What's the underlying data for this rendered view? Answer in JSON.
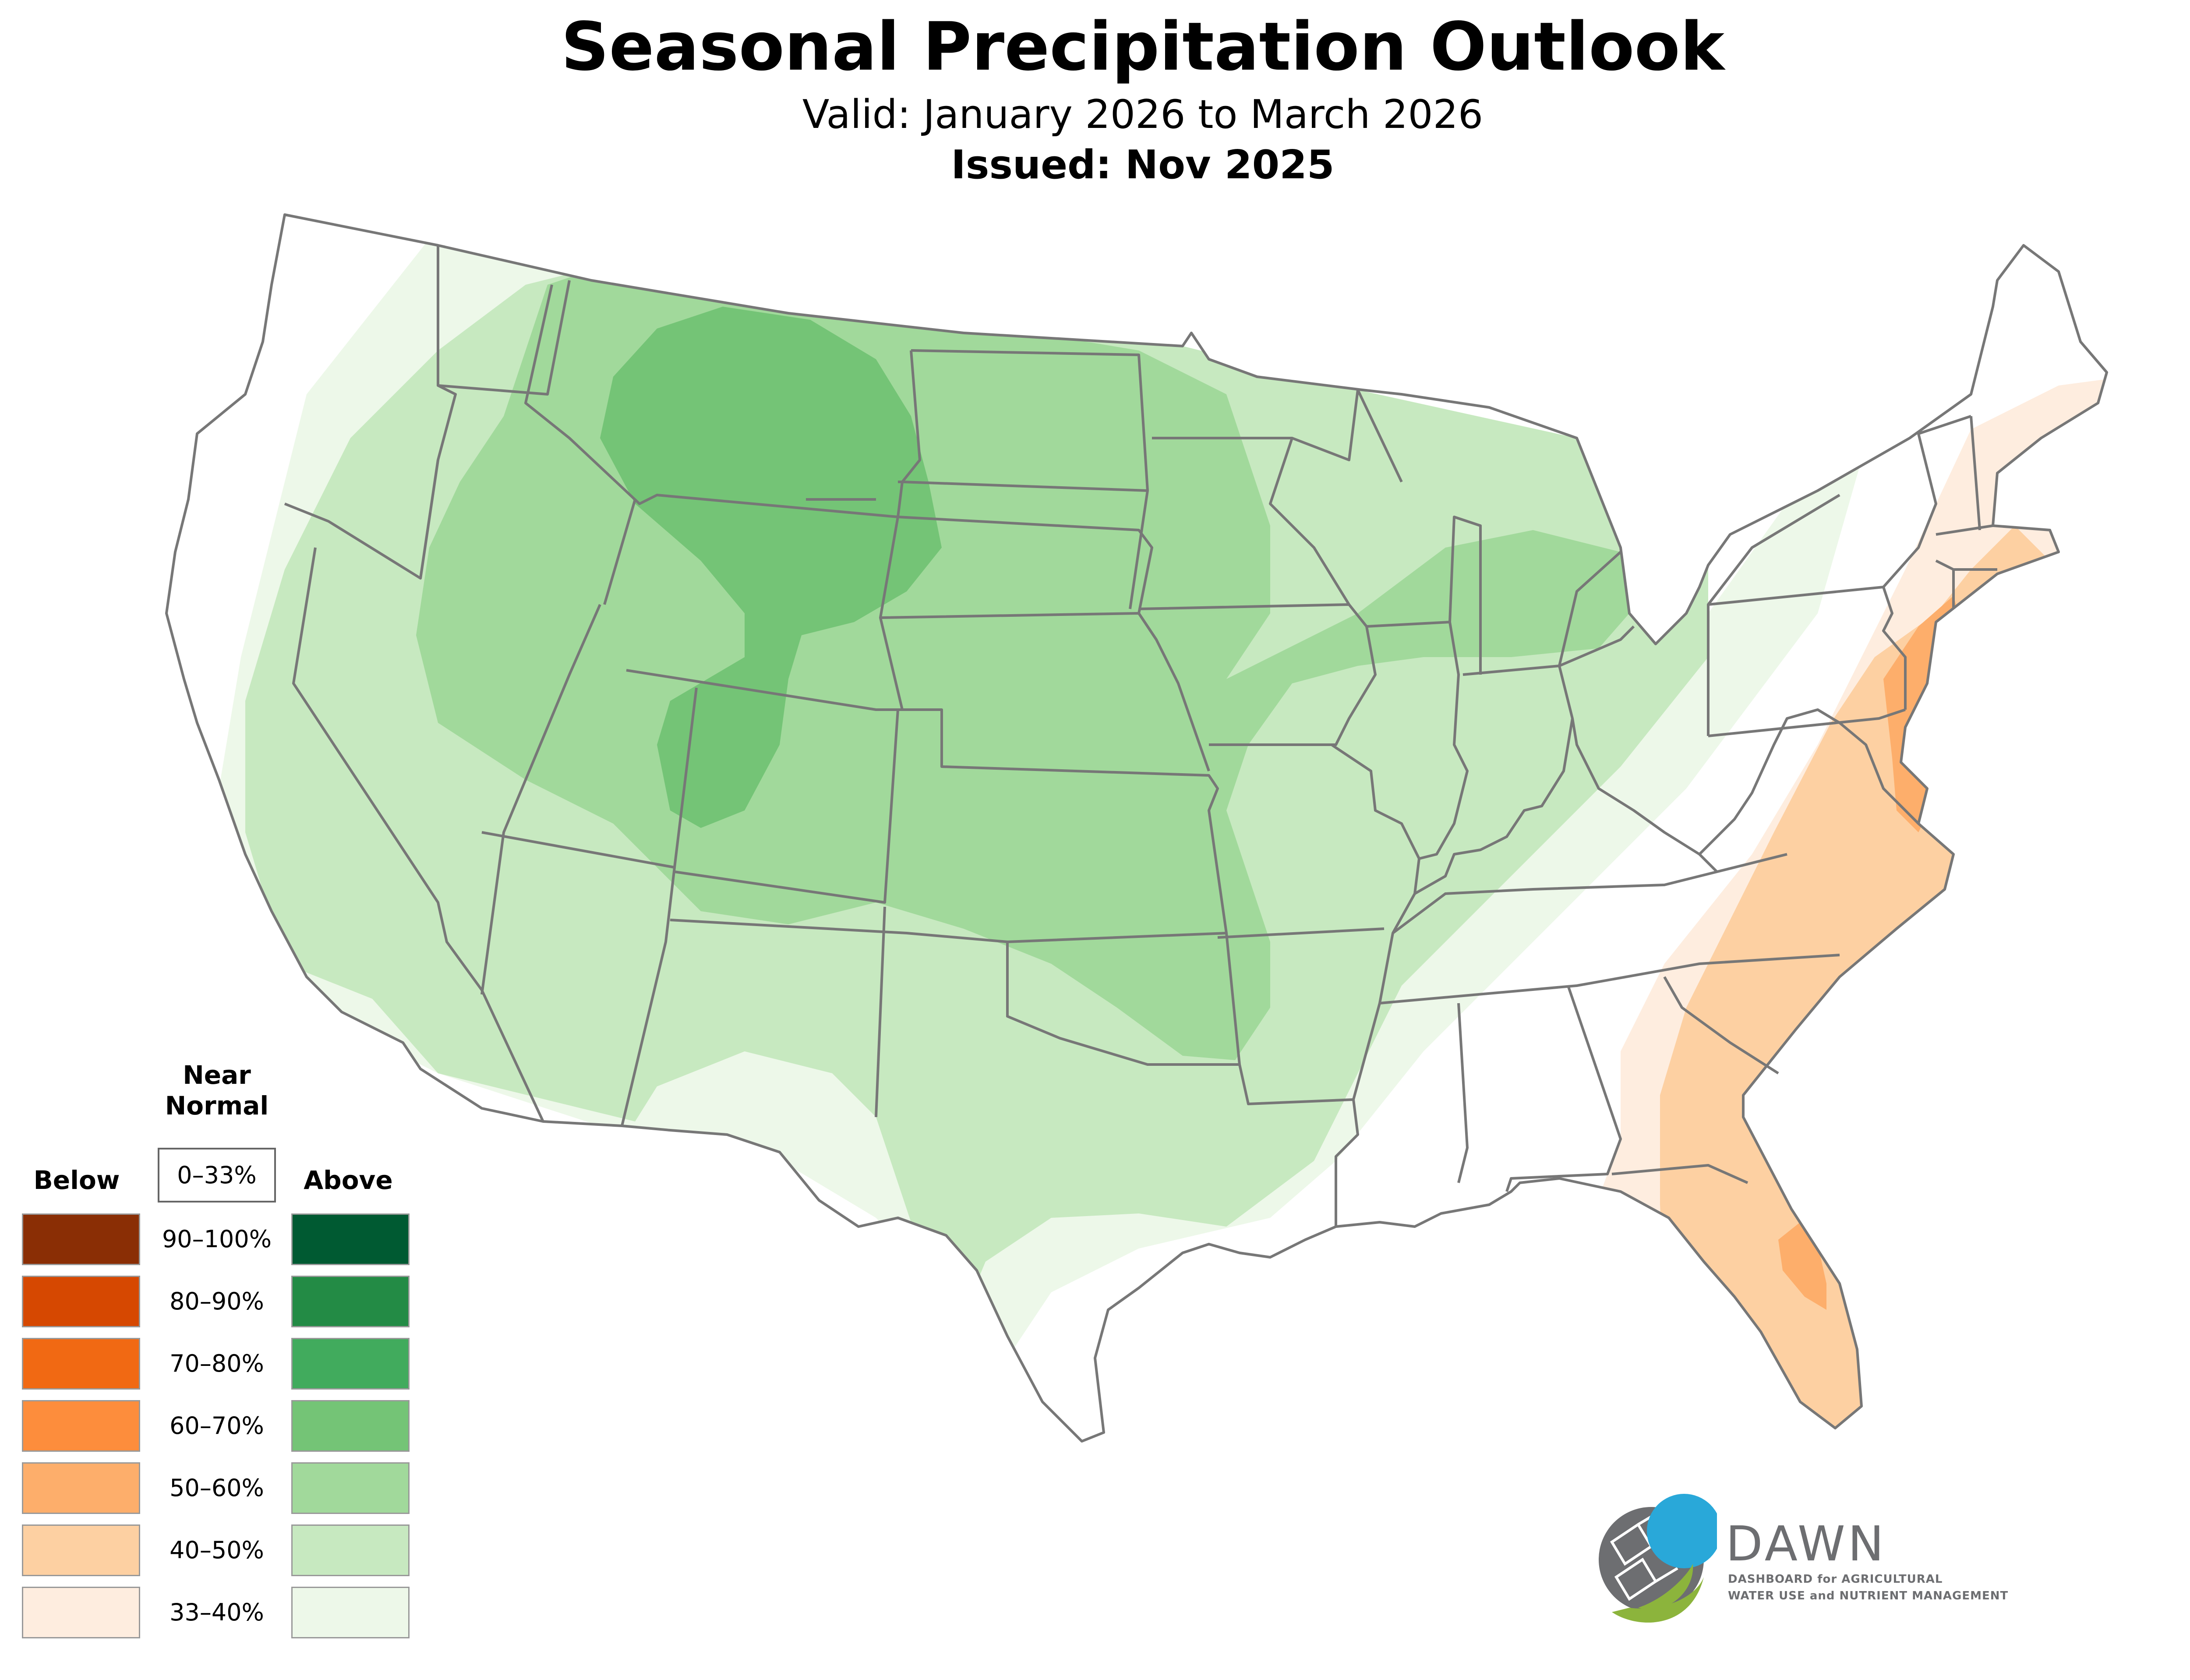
{
  "header": {
    "title": "Seasonal Precipitation Outlook",
    "subtitle": "Valid: January 2026 to March 2026",
    "issued": "Issued: Nov 2025"
  },
  "legend": {
    "near_normal_heading": "Near Normal",
    "near_normal_range": "0–33%",
    "below_heading": "Below",
    "above_heading": "Above",
    "bands": [
      {
        "label": "90–100%",
        "below_color": "#8a2e05",
        "above_color": "#005a32"
      },
      {
        "label": "80–90%",
        "below_color": "#d64801",
        "above_color": "#238b45"
      },
      {
        "label": "70–80%",
        "below_color": "#f16913",
        "above_color": "#41ab5d"
      },
      {
        "label": "60–70%",
        "below_color": "#fd8d3c",
        "above_color": "#74c476"
      },
      {
        "label": "50–60%",
        "below_color": "#fdae6b",
        "above_color": "#a1d99b"
      },
      {
        "label": "40–50%",
        "below_color": "#fdd0a2",
        "above_color": "#c7e9c0"
      },
      {
        "label": "33–40%",
        "below_color": "#feeddf",
        "above_color": "#edf8e9"
      }
    ]
  },
  "logo": {
    "wordmark": "DAWN",
    "tagline_line1": "DASHBOARD for AGRICULTURAL",
    "tagline_line2": "WATER USE and NUTRIENT MANAGEMENT",
    "colors": {
      "blue": "#29a8d9",
      "green": "#8cb43c",
      "gray": "#6d6e71"
    }
  },
  "map": {
    "region": "Contiguous United States",
    "border_color": "#777777",
    "outlook_areas": [
      {
        "category": "above",
        "probability": "33–40%",
        "color": "#edf8e9"
      },
      {
        "category": "above",
        "probability": "40–50%",
        "color": "#c7e9c0"
      },
      {
        "category": "above",
        "probability": "50–60%",
        "color": "#a1d99b"
      },
      {
        "category": "above",
        "probability": "60–70%",
        "color": "#74c476"
      },
      {
        "category": "below",
        "probability": "33–40%",
        "color": "#feeddf"
      },
      {
        "category": "below",
        "probability": "40–50%",
        "color": "#fdd0a2"
      },
      {
        "category": "below",
        "probability": "50–60%",
        "color": "#fdae6b"
      }
    ]
  }
}
